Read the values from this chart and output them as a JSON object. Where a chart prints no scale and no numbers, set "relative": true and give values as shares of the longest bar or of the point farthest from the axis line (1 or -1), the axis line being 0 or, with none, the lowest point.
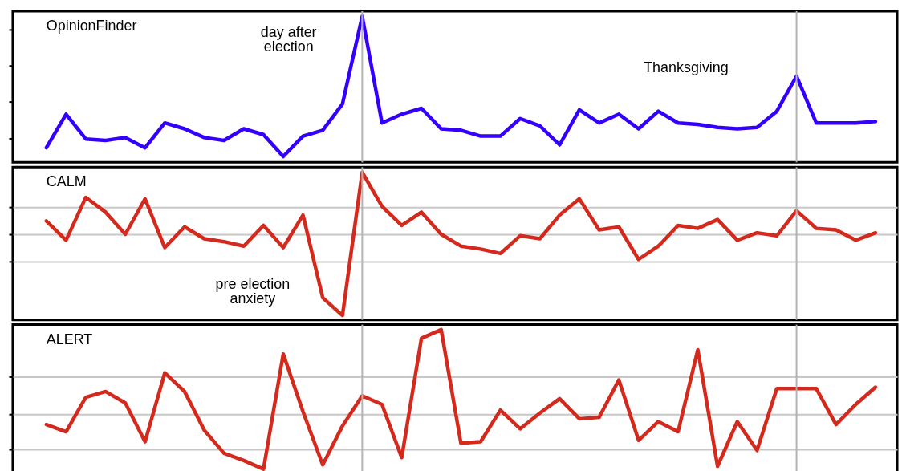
{
  "chart_data": [
    {
      "type": "line",
      "title": "OpinionFinder",
      "relative": true,
      "grid": false,
      "line_style": "solid",
      "categories": [
        null,
        null,
        null,
        null,
        null,
        null,
        null,
        null,
        null,
        null,
        null,
        null,
        null,
        null,
        null,
        null,
        null,
        null,
        null,
        null,
        null,
        null,
        null,
        null,
        null,
        null,
        null,
        null,
        null,
        null,
        null,
        null,
        null,
        null,
        null,
        null,
        null,
        null,
        null,
        null,
        null,
        null,
        null
      ],
      "series": [
        {
          "color": "#3300ff",
          "values": [
            0.1,
            0.33,
            0.16,
            0.15,
            0.17,
            0.1,
            0.27,
            0.23,
            0.17,
            0.15,
            0.23,
            0.19,
            0.04,
            0.18,
            0.22,
            0.4,
            1,
            0.27,
            0.33,
            0.37,
            0.23,
            0.22,
            0.18,
            0.18,
            0.3,
            0.25,
            0.12,
            0.36,
            0.27,
            0.33,
            0.23,
            0.35,
            0.27,
            0.26,
            0.24,
            0.23,
            0.24,
            0.35,
            0.59,
            0.27,
            0.27,
            0.27,
            0.28
          ]
        }
      ],
      "annotations": [
        "day after\nelection",
        "Thanksgiving"
      ]
    },
    {
      "type": "line",
      "title": "CALM",
      "relative": true,
      "grid": "y",
      "line_style": "solid",
      "categories": [
        null,
        null,
        null,
        null,
        null,
        null,
        null,
        null,
        null,
        null,
        null,
        null,
        null,
        null,
        null,
        null,
        null,
        null,
        null,
        null,
        null,
        null,
        null,
        null,
        null,
        null,
        null,
        null,
        null,
        null,
        null,
        null,
        null,
        null,
        null,
        null,
        null,
        null,
        null,
        null,
        null,
        null,
        null
      ],
      "series": [
        {
          "color": "#d42a1e",
          "values": [
            0.67,
            0.54,
            0.83,
            0.73,
            0.58,
            0.82,
            0.49,
            0.63,
            0.55,
            0.53,
            0.5,
            0.64,
            0.49,
            0.71,
            0.15,
            0.03,
            1,
            0.77,
            0.64,
            0.73,
            0.58,
            0.5,
            0.48,
            0.45,
            0.57,
            0.55,
            0.71,
            0.82,
            0.61,
            0.63,
            0.41,
            0.5,
            0.64,
            0.62,
            0.68,
            0.54,
            0.59,
            0.57,
            0.74,
            0.62,
            0.61,
            0.54,
            0.59
          ]
        }
      ],
      "annotations": [
        "pre election\nanxiety"
      ]
    },
    {
      "type": "line",
      "title": "ALERT",
      "relative": true,
      "grid": "y",
      "line_style": "solid",
      "categories": [
        null,
        null,
        null,
        null,
        null,
        null,
        null,
        null,
        null,
        null,
        null,
        null,
        null,
        null,
        null,
        null,
        null,
        null,
        null,
        null,
        null,
        null,
        null,
        null,
        null,
        null,
        null,
        null,
        null,
        null,
        null,
        null,
        null,
        null,
        null,
        null,
        null,
        null,
        null,
        null,
        null,
        null,
        null
      ],
      "series": [
        {
          "color": "#d42a1e",
          "values": [
            0.34,
            0.29,
            0.53,
            0.57,
            0.49,
            0.22,
            0.7,
            0.57,
            0.3,
            0.14,
            0.09,
            0.03,
            0.83,
            0.43,
            0.06,
            0.33,
            0.54,
            0.48,
            0.11,
            0.94,
            1,
            0.21,
            0.22,
            0.44,
            0.31,
            0.42,
            0.52,
            0.38,
            0.39,
            0.65,
            0.23,
            0.36,
            0.29,
            0.86,
            0.05,
            0.36,
            0.16,
            0.59,
            0.59,
            0.59,
            0.34,
            0.48,
            0.6
          ]
        }
      ]
    }
  ]
}
